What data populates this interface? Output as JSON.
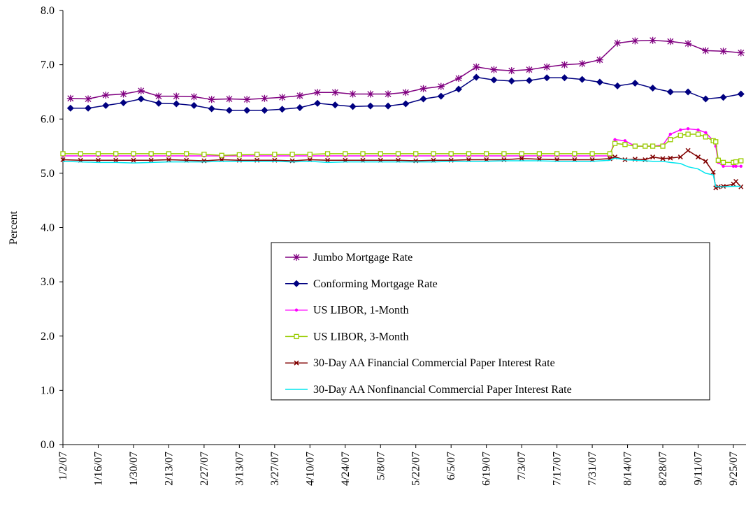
{
  "chart_data": {
    "type": "line",
    "ylabel": "Percent",
    "ylim": [
      0,
      8
    ],
    "yticks": [
      {
        "value": 0,
        "label": "0.0"
      },
      {
        "value": 1,
        "label": "1.0"
      },
      {
        "value": 2,
        "label": "2.0"
      },
      {
        "value": 3,
        "label": "3.0"
      },
      {
        "value": 4,
        "label": "4.0"
      },
      {
        "value": 5,
        "label": "5.0"
      },
      {
        "value": 6,
        "label": "6.0"
      },
      {
        "value": 7,
        "label": "7.0"
      },
      {
        "value": 8,
        "label": "8.0"
      }
    ],
    "xlim": [
      "1/2/07",
      "9/30/07"
    ],
    "xticks": [
      "1/2/07",
      "1/16/07",
      "1/30/07",
      "2/13/07",
      "2/27/07",
      "3/13/07",
      "3/27/07",
      "4/10/07",
      "4/24/07",
      "5/8/07",
      "5/22/07",
      "6/5/07",
      "6/19/07",
      "7/3/07",
      "7/17/07",
      "7/31/07",
      "8/14/07",
      "8/28/07",
      "9/11/07",
      "9/25/07"
    ],
    "series": [
      {
        "name": "Jumbo Mortgage Rate",
        "color": "#800080",
        "marker": "star",
        "x": [
          "1/5/07",
          "1/12/07",
          "1/19/07",
          "1/26/07",
          "2/2/07",
          "2/9/07",
          "2/16/07",
          "2/23/07",
          "3/2/07",
          "3/9/07",
          "3/16/07",
          "3/23/07",
          "3/30/07",
          "4/6/07",
          "4/13/07",
          "4/20/07",
          "4/27/07",
          "5/4/07",
          "5/11/07",
          "5/18/07",
          "5/25/07",
          "6/1/07",
          "6/8/07",
          "6/15/07",
          "6/22/07",
          "6/29/07",
          "7/6/07",
          "7/13/07",
          "7/20/07",
          "7/27/07",
          "8/3/07",
          "8/10/07",
          "8/17/07",
          "8/24/07",
          "8/31/07",
          "9/7/07",
          "9/14/07",
          "9/21/07",
          "9/28/07"
        ],
        "values": [
          6.38,
          6.37,
          6.44,
          6.46,
          6.52,
          6.42,
          6.42,
          6.41,
          6.36,
          6.37,
          6.36,
          6.38,
          6.4,
          6.43,
          6.49,
          6.49,
          6.46,
          6.46,
          6.46,
          6.49,
          6.56,
          6.6,
          6.75,
          6.96,
          6.91,
          6.89,
          6.91,
          6.96,
          7.0,
          7.02,
          7.09,
          7.4,
          7.44,
          7.45,
          7.43,
          7.39,
          7.26,
          7.25,
          7.22
        ]
      },
      {
        "name": "Conforming Mortgage Rate",
        "color": "#000080",
        "marker": "diamond",
        "x": [
          "1/5/07",
          "1/12/07",
          "1/19/07",
          "1/26/07",
          "2/2/07",
          "2/9/07",
          "2/16/07",
          "2/23/07",
          "3/2/07",
          "3/9/07",
          "3/16/07",
          "3/23/07",
          "3/30/07",
          "4/6/07",
          "4/13/07",
          "4/20/07",
          "4/27/07",
          "5/4/07",
          "5/11/07",
          "5/18/07",
          "5/25/07",
          "6/1/07",
          "6/8/07",
          "6/15/07",
          "6/22/07",
          "6/29/07",
          "7/6/07",
          "7/13/07",
          "7/20/07",
          "7/27/07",
          "8/3/07",
          "8/10/07",
          "8/17/07",
          "8/24/07",
          "8/31/07",
          "9/7/07",
          "9/14/07",
          "9/21/07",
          "9/28/07"
        ],
        "values": [
          6.2,
          6.2,
          6.25,
          6.3,
          6.37,
          6.29,
          6.28,
          6.25,
          6.19,
          6.16,
          6.16,
          6.16,
          6.18,
          6.21,
          6.29,
          6.26,
          6.23,
          6.24,
          6.24,
          6.28,
          6.37,
          6.42,
          6.55,
          6.77,
          6.72,
          6.7,
          6.71,
          6.76,
          6.76,
          6.73,
          6.68,
          6.61,
          6.66,
          6.57,
          6.5,
          6.5,
          6.37,
          6.4,
          6.46
        ]
      },
      {
        "name": "US LIBOR, 1-Month",
        "color": "#ff00ff",
        "marker": "circle",
        "x": [
          "1/2/07",
          "1/9/07",
          "1/16/07",
          "1/23/07",
          "1/30/07",
          "2/6/07",
          "2/13/07",
          "2/20/07",
          "2/27/07",
          "3/6/07",
          "3/13/07",
          "3/20/07",
          "3/27/07",
          "4/3/07",
          "4/10/07",
          "4/17/07",
          "4/24/07",
          "5/1/07",
          "5/8/07",
          "5/15/07",
          "5/22/07",
          "5/29/07",
          "6/5/07",
          "6/12/07",
          "6/19/07",
          "6/26/07",
          "7/3/07",
          "7/10/07",
          "7/17/07",
          "7/24/07",
          "7/31/07",
          "8/7/07",
          "8/9/07",
          "8/13/07",
          "8/17/07",
          "8/21/07",
          "8/24/07",
          "8/28/07",
          "8/31/07",
          "9/4/07",
          "9/7/07",
          "9/11/07",
          "9/14/07",
          "9/17/07",
          "9/18/07",
          "9/19/07",
          "9/21/07",
          "9/25/07",
          "9/26/07",
          "9/28/07"
        ],
        "values": [
          5.32,
          5.32,
          5.32,
          5.32,
          5.32,
          5.32,
          5.32,
          5.32,
          5.32,
          5.32,
          5.32,
          5.32,
          5.32,
          5.32,
          5.32,
          5.32,
          5.32,
          5.32,
          5.32,
          5.32,
          5.32,
          5.32,
          5.32,
          5.32,
          5.32,
          5.32,
          5.32,
          5.32,
          5.32,
          5.32,
          5.32,
          5.32,
          5.62,
          5.6,
          5.5,
          5.5,
          5.5,
          5.52,
          5.72,
          5.8,
          5.82,
          5.8,
          5.75,
          5.6,
          5.5,
          5.2,
          5.13,
          5.13,
          5.13,
          5.13
        ]
      },
      {
        "name": "US LIBOR, 3-Month",
        "color": "#99cc00",
        "marker": "square",
        "x": [
          "1/2/07",
          "1/9/07",
          "1/16/07",
          "1/23/07",
          "1/30/07",
          "2/6/07",
          "2/13/07",
          "2/20/07",
          "2/27/07",
          "3/6/07",
          "3/13/07",
          "3/20/07",
          "3/27/07",
          "4/3/07",
          "4/10/07",
          "4/17/07",
          "4/24/07",
          "5/1/07",
          "5/8/07",
          "5/15/07",
          "5/22/07",
          "5/29/07",
          "6/5/07",
          "6/12/07",
          "6/19/07",
          "6/26/07",
          "7/3/07",
          "7/10/07",
          "7/17/07",
          "7/24/07",
          "7/31/07",
          "8/7/07",
          "8/9/07",
          "8/13/07",
          "8/17/07",
          "8/21/07",
          "8/24/07",
          "8/28/07",
          "8/31/07",
          "9/4/07",
          "9/7/07",
          "9/11/07",
          "9/14/07",
          "9/17/07",
          "9/18/07",
          "9/19/07",
          "9/21/07",
          "9/25/07",
          "9/26/07",
          "9/28/07"
        ],
        "values": [
          5.36,
          5.36,
          5.36,
          5.36,
          5.36,
          5.36,
          5.36,
          5.36,
          5.35,
          5.33,
          5.34,
          5.35,
          5.35,
          5.35,
          5.35,
          5.36,
          5.36,
          5.36,
          5.36,
          5.36,
          5.36,
          5.36,
          5.36,
          5.36,
          5.36,
          5.36,
          5.36,
          5.36,
          5.36,
          5.36,
          5.36,
          5.36,
          5.55,
          5.53,
          5.5,
          5.5,
          5.5,
          5.5,
          5.62,
          5.7,
          5.72,
          5.72,
          5.67,
          5.6,
          5.58,
          5.24,
          5.2,
          5.2,
          5.21,
          5.23
        ]
      },
      {
        "name": "30-Day AA Financial Commercial Paper Interest Rate",
        "color": "#800000",
        "marker": "cross",
        "x": [
          "1/2/07",
          "1/9/07",
          "1/16/07",
          "1/23/07",
          "1/30/07",
          "2/6/07",
          "2/13/07",
          "2/20/07",
          "2/27/07",
          "3/6/07",
          "3/13/07",
          "3/20/07",
          "3/27/07",
          "4/3/07",
          "4/10/07",
          "4/17/07",
          "4/24/07",
          "5/1/07",
          "5/8/07",
          "5/15/07",
          "5/22/07",
          "5/29/07",
          "6/5/07",
          "6/12/07",
          "6/19/07",
          "6/26/07",
          "7/3/07",
          "7/10/07",
          "7/17/07",
          "7/24/07",
          "7/31/07",
          "8/7/07",
          "8/9/07",
          "8/13/07",
          "8/17/07",
          "8/21/07",
          "8/24/07",
          "8/28/07",
          "8/31/07",
          "9/4/07",
          "9/7/07",
          "9/11/07",
          "9/14/07",
          "9/17/07",
          "9/18/07",
          "9/19/07",
          "9/21/07",
          "9/25/07",
          "9/26/07",
          "9/28/07"
        ],
        "values": [
          5.25,
          5.24,
          5.24,
          5.24,
          5.24,
          5.24,
          5.25,
          5.24,
          5.23,
          5.25,
          5.24,
          5.24,
          5.24,
          5.23,
          5.25,
          5.24,
          5.24,
          5.24,
          5.24,
          5.24,
          5.23,
          5.24,
          5.24,
          5.25,
          5.25,
          5.25,
          5.27,
          5.26,
          5.25,
          5.25,
          5.25,
          5.27,
          5.3,
          5.25,
          5.26,
          5.25,
          5.3,
          5.27,
          5.28,
          5.3,
          5.42,
          5.3,
          5.22,
          5.02,
          4.73,
          4.75,
          4.76,
          4.8,
          4.85,
          4.75
        ]
      },
      {
        "name": "30-Day AA Nonfinancial Commercial Paper Interest Rate",
        "color": "#00e5ee",
        "marker": "none",
        "x": [
          "1/2/07",
          "1/9/07",
          "1/16/07",
          "1/23/07",
          "1/30/07",
          "2/6/07",
          "2/13/07",
          "2/20/07",
          "2/27/07",
          "3/6/07",
          "3/13/07",
          "3/20/07",
          "3/27/07",
          "4/3/07",
          "4/10/07",
          "4/17/07",
          "4/24/07",
          "5/1/07",
          "5/8/07",
          "5/15/07",
          "5/22/07",
          "5/29/07",
          "6/5/07",
          "6/12/07",
          "6/19/07",
          "6/26/07",
          "7/3/07",
          "7/10/07",
          "7/17/07",
          "7/24/07",
          "7/31/07",
          "8/7/07",
          "8/9/07",
          "8/13/07",
          "8/17/07",
          "8/21/07",
          "8/24/07",
          "8/28/07",
          "8/31/07",
          "9/4/07",
          "9/7/07",
          "9/11/07",
          "9/14/07",
          "9/17/07",
          "9/18/07",
          "9/19/07",
          "9/21/07",
          "9/25/07",
          "9/26/07",
          "9/28/07"
        ],
        "values": [
          5.22,
          5.21,
          5.2,
          5.2,
          5.19,
          5.2,
          5.21,
          5.21,
          5.21,
          5.22,
          5.22,
          5.22,
          5.22,
          5.21,
          5.22,
          5.2,
          5.21,
          5.21,
          5.21,
          5.21,
          5.21,
          5.21,
          5.22,
          5.22,
          5.22,
          5.23,
          5.23,
          5.23,
          5.22,
          5.22,
          5.22,
          5.24,
          5.28,
          5.25,
          5.24,
          5.23,
          5.22,
          5.22,
          5.2,
          5.18,
          5.12,
          5.08,
          5.0,
          4.97,
          4.75,
          4.75,
          4.75,
          4.76,
          4.76,
          4.76
        ]
      }
    ],
    "legend": "center-right"
  }
}
